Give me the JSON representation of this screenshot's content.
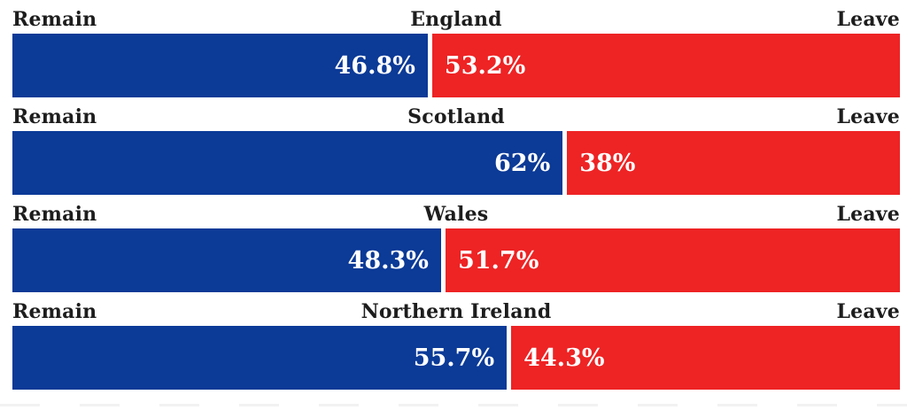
{
  "colors": {
    "remain_blue": "#0b3a97",
    "leave_red": "#ee2324",
    "header_text": "#1d1d1d",
    "value_text": "#ffffff"
  },
  "chart_data": {
    "type": "bar",
    "variant": "horizontal-stacked-percentage",
    "title": "",
    "xlabel": "",
    "ylabel": "",
    "xlim": [
      0,
      100
    ],
    "grid": false,
    "legend": {
      "left": "Remain",
      "right": "Leave"
    },
    "categories": [
      "England",
      "Scotland",
      "Wales",
      "Northern Ireland"
    ],
    "series": [
      {
        "name": "Remain",
        "values": [
          46.8,
          62,
          48.3,
          55.7
        ]
      },
      {
        "name": "Leave",
        "values": [
          53.2,
          38,
          51.7,
          44.3
        ]
      }
    ],
    "regions": [
      {
        "name": "England",
        "remain": 46.8,
        "leave": 53.2,
        "remain_label": "46.8%",
        "leave_label": "53.2%"
      },
      {
        "name": "Scotland",
        "remain": 62,
        "leave": 38,
        "remain_label": "62%",
        "leave_label": "38%"
      },
      {
        "name": "Wales",
        "remain": 48.3,
        "leave": 51.7,
        "remain_label": "48.3%",
        "leave_label": "51.7%"
      },
      {
        "name": "Northern Ireland",
        "remain": 55.7,
        "leave": 44.3,
        "remain_label": "55.7%",
        "leave_label": "44.3%"
      }
    ]
  }
}
